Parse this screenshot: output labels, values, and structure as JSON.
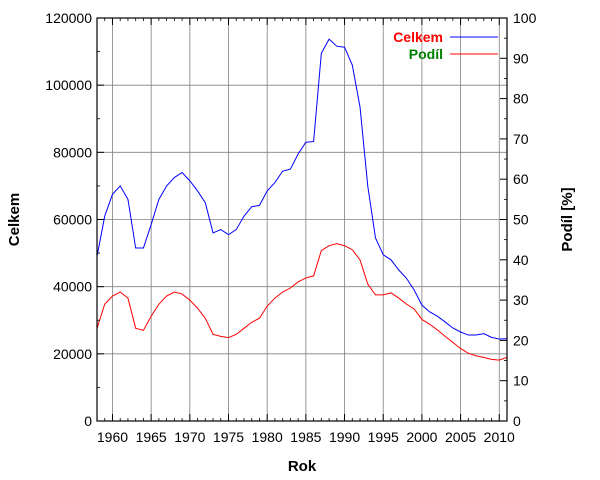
{
  "chart_data": {
    "type": "line",
    "xlabel": "Rok",
    "ylabel_left": "Celkem",
    "ylabel_right": "Podíl [%]",
    "xlim": [
      1958,
      2011
    ],
    "ylim_left": [
      0,
      120000
    ],
    "ylim_right": [
      0,
      100
    ],
    "x_ticks": [
      1960,
      1965,
      1970,
      1975,
      1980,
      1985,
      1990,
      1995,
      2000,
      2005,
      2010
    ],
    "y_ticks_left": [
      0,
      20000,
      40000,
      60000,
      80000,
      100000,
      120000
    ],
    "y_ticks_right": [
      0,
      10,
      20,
      30,
      40,
      50,
      60,
      70,
      80,
      90,
      100
    ],
    "grid": true,
    "legend_position": "top-right",
    "x": [
      1958,
      1959,
      1960,
      1961,
      1962,
      1963,
      1964,
      1965,
      1966,
      1967,
      1968,
      1969,
      1970,
      1971,
      1972,
      1973,
      1974,
      1975,
      1976,
      1977,
      1978,
      1979,
      1980,
      1981,
      1982,
      1983,
      1984,
      1985,
      1986,
      1987,
      1988,
      1989,
      1990,
      1991,
      1992,
      1993,
      1994,
      1995,
      1996,
      1997,
      1998,
      1999,
      2000,
      2001,
      2002,
      2003,
      2004,
      2005,
      2006,
      2007,
      2008,
      2009,
      2010,
      2011
    ],
    "series": [
      {
        "name": "Celkem",
        "axis": "left",
        "color": "#0000ff",
        "values": [
          49000,
          61000,
          67500,
          70000,
          66000,
          51500,
          51500,
          58500,
          66000,
          70000,
          72500,
          74000,
          71500,
          68500,
          65000,
          56000,
          57000,
          55500,
          57000,
          61000,
          63800,
          64200,
          68500,
          71000,
          74400,
          75000,
          79500,
          83000,
          83200,
          109500,
          113700,
          111600,
          111300,
          106000,
          93500,
          70000,
          54500,
          49500,
          48000,
          45000,
          42500,
          39000,
          34500,
          32500,
          31200,
          29500,
          27700,
          26500,
          25600,
          25600,
          26000,
          24900,
          24400,
          24500
        ],
        "legend_color": "#ff0000"
      },
      {
        "name": "Podíl",
        "axis": "right",
        "color": "#ff0000",
        "values": [
          23,
          29,
          31,
          32,
          30.5,
          23,
          22.5,
          26,
          29,
          31,
          32,
          31.5,
          30,
          28,
          25.5,
          21.5,
          21,
          20.7,
          21.5,
          23,
          24.5,
          25.5,
          28.5,
          30.5,
          32,
          33,
          34.5,
          35.5,
          36,
          42.3,
          43.5,
          44,
          43.5,
          42.5,
          40,
          34,
          31.3,
          31.3,
          31.8,
          30.5,
          29,
          27.8,
          25.2,
          24,
          22.6,
          21,
          19.5,
          18,
          16.8,
          16.2,
          15.8,
          15.3,
          15.1,
          15.8
        ],
        "legend_color": "#008000"
      }
    ]
  }
}
